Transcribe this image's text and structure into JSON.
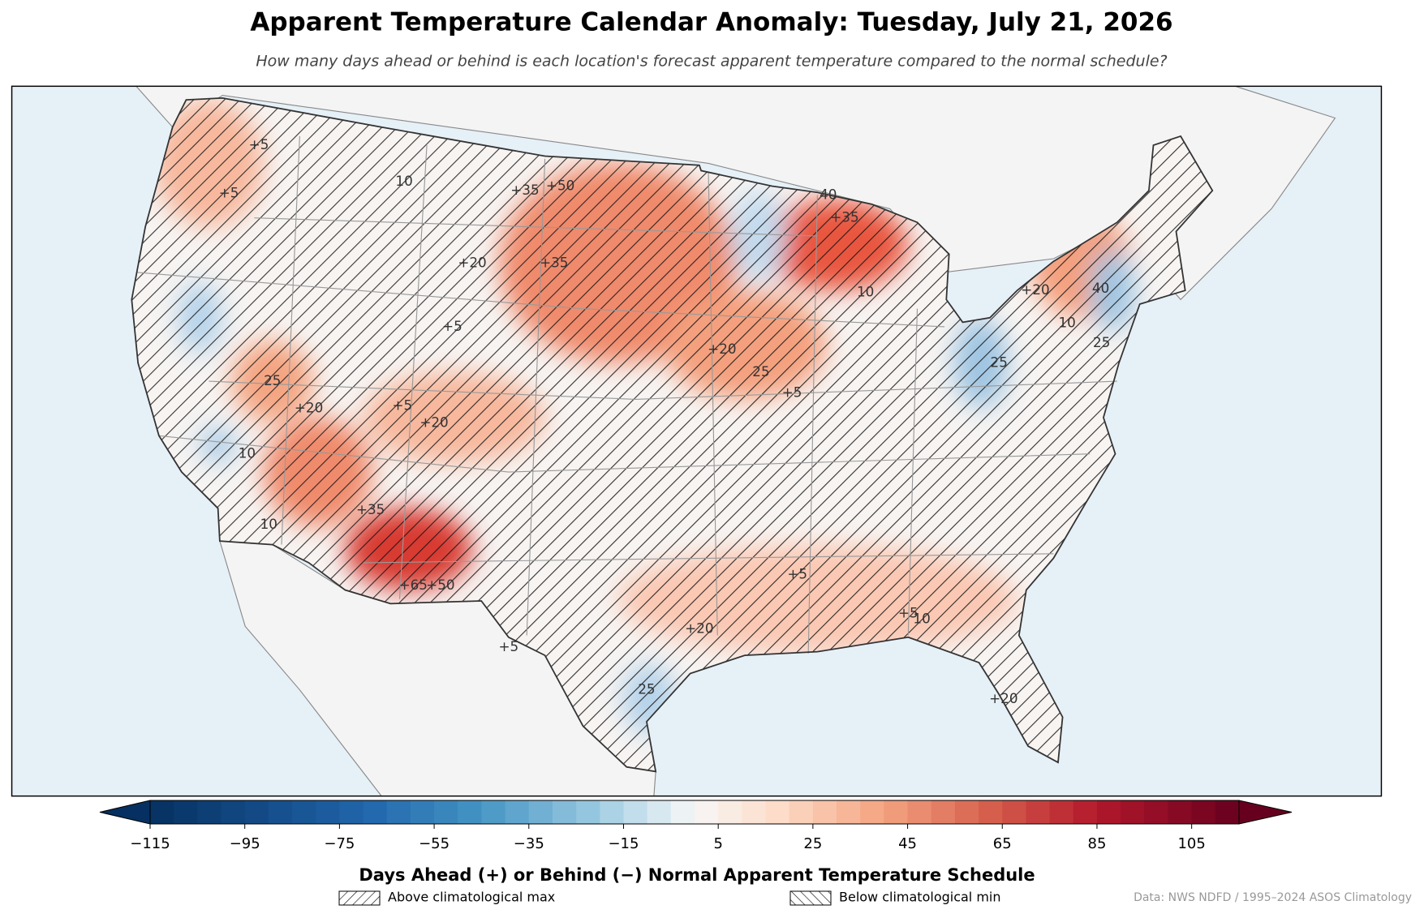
{
  "title": "Apparent Temperature Calendar Anomaly: Tuesday, July 21, 2026",
  "subtitle": "How many days ahead or behind is each location's forecast apparent temperature compared to the normal schedule?",
  "map": {
    "contour_labels": [
      "+5",
      "+5",
      "10",
      "+20",
      "+35",
      "+50",
      "+35",
      "40",
      "+35",
      "10",
      "+20",
      "25",
      "+5",
      "25",
      "+20",
      "+35",
      "10",
      "+65",
      "+50",
      "+20",
      "+5",
      "10",
      "+5",
      "25",
      "+20",
      "10",
      "+20",
      "+5",
      "+5",
      "40",
      "25",
      "10",
      "+20",
      "+5",
      "25"
    ]
  },
  "colorbar": {
    "label": "Days Ahead (+) or Behind (−) Normal Apparent Temperature Schedule",
    "lim": [
      -115,
      115
    ],
    "ticks": [
      {
        "value": -115,
        "label": "−115"
      },
      {
        "value": -95,
        "label": "−95"
      },
      {
        "value": -75,
        "label": "−75"
      },
      {
        "value": -55,
        "label": "−55"
      },
      {
        "value": -35,
        "label": "−35"
      },
      {
        "value": -15,
        "label": "−15"
      },
      5,
      25,
      45,
      65,
      85,
      105
    ]
  },
  "legend": [
    "Above climatological max",
    "Below climatological min"
  ],
  "source": "Data: NWS NDFD / 1995–2024 ASOS Climatology"
}
